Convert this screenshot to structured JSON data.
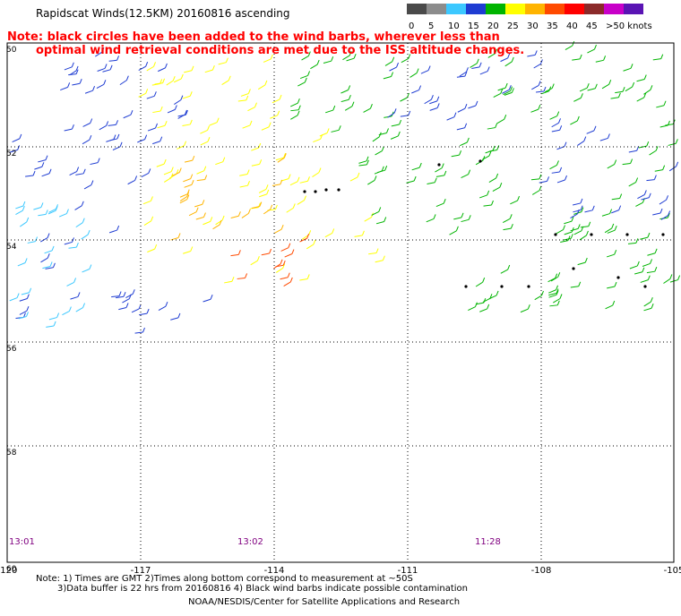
{
  "title": "Rapidscat Winds(12.5KM) 20160816 ascending",
  "note": {
    "line1": "Note: black circles have been added to the wind barbs, wherever less than",
    "line2": "optimal wind retrieval conditions are met due to the ISS altitude changes."
  },
  "legend": {
    "labels": [
      "0",
      "5",
      "10",
      "15",
      "20",
      "25",
      "30",
      "35",
      "40",
      "45",
      ">50 knots"
    ],
    "colors": [
      "#4a4a4a",
      "#8c8c8c",
      "#3cc8ff",
      "#1e3cd2",
      "#00b400",
      "#ffff00",
      "#ffb400",
      "#ff4a00",
      "#ff0000",
      "#8b2a2a",
      "#c800c8",
      "#5a14b4"
    ]
  },
  "axes": {
    "x_ticks": [
      "-120",
      "-117",
      "-114",
      "-111",
      "-108",
      "-105"
    ],
    "y_ticks": [
      "50",
      "52",
      "54",
      "56",
      "58",
      "60"
    ]
  },
  "times": [
    "13:01",
    "13:02",
    "11:28"
  ],
  "footer": {
    "line1": "Note: 1) Times are GMT 2)Times along bottom correspond to measurement at ~50S",
    "line2": "3)Data buffer is 22 hrs from 20160816 4) Black wind barbs indicate possible contamination",
    "credit": "NOAA/NESDIS/Center for Satellite Applications and Research"
  }
}
